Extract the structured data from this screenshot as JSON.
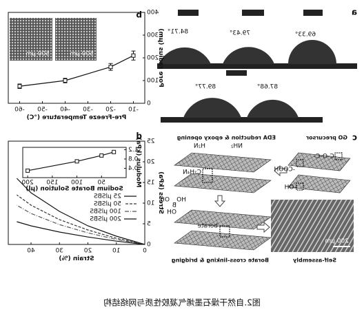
{
  "caption": "图2.自然干燥石墨烯气凝胶性质与网络结构",
  "panel_a": {
    "label": "a",
    "angles": [
      "69.33°",
      "79.43°",
      "84.71°",
      "87.68°",
      "89.77°"
    ]
  },
  "panel_c": {
    "label": "c",
    "steps": [
      "GO precursor",
      "EDA reduction & epoxy opening",
      "Borate cross-linking & bridging",
      "Self-assembly"
    ],
    "groups": [
      "-C-O-C-",
      "-COOH",
      "-OH",
      "H₂N",
      "NH₂",
      "C₂H₄N",
      "borate",
      "HO",
      "B",
      "OH",
      "OH"
    ],
    "scale_bar": "200 μm"
  },
  "chart_data": [
    {
      "type": "line",
      "label": "b",
      "xlabel": "Pre-Freeze Temperature (°C)",
      "ylabel": "Pore radius (μm)",
      "x": [
        -10,
        -20,
        -40,
        -60
      ],
      "series": [
        {
          "color": "#111111",
          "values": [
            210,
            160,
            100,
            75
          ],
          "errors": [
            20,
            15,
            10,
            10
          ]
        }
      ],
      "xlim": [
        -5,
        -65
      ],
      "xticks": [
        -10,
        -20,
        -30,
        -40,
        -50,
        -60
      ],
      "ylim": [
        0,
        400
      ],
      "yticks": [
        0,
        100,
        200,
        300,
        400
      ],
      "markers": true,
      "inset_labels": [
        "500 μm",
        "500 μm"
      ]
    },
    {
      "type": "line",
      "label": "d",
      "xlabel": "Strain (%)",
      "ylabel": "Stress (kPa)",
      "x": [
        0,
        10,
        20,
        30,
        40,
        45
      ],
      "series": [
        {
          "name": "25 μlSBS",
          "color": "#111111",
          "dash": "none",
          "values": [
            0,
            2,
            4.5,
            8,
            12.5,
            16
          ]
        },
        {
          "name": "50 μlSBS",
          "color": "#333333",
          "dash": "4 2",
          "values": [
            0,
            1.5,
            3.5,
            6,
            9.5,
            12
          ]
        },
        {
          "name": "100 μlSBS",
          "color": "#555555",
          "dash": "6 2 1 2",
          "values": [
            0,
            1.2,
            2.8,
            4.8,
            7.5,
            9.5
          ]
        },
        {
          "name": "200 μlSBS",
          "color": "#111111",
          "dash": "none",
          "values": [
            0,
            0.8,
            1.8,
            3,
            4.5,
            5.5
          ]
        }
      ],
      "xlim": [
        0,
        48
      ],
      "xticks": [
        0,
        10,
        20,
        30,
        40
      ],
      "ylim": [
        0,
        25
      ],
      "yticks": [
        0,
        5,
        10,
        15,
        20,
        25
      ],
      "markers": false
    },
    {
      "type": "line",
      "xlabel": "Sodium Borate Solution (μl)",
      "ylabel": "Modulus (kPa)",
      "x": [
        25,
        50,
        100,
        200
      ],
      "series": [
        {
          "color": "#111111",
          "values": [
            1.1,
            0.95,
            0.7,
            0.3
          ]
        }
      ],
      "xlim": [
        0,
        210
      ],
      "xticks": [
        50,
        100,
        150,
        200
      ],
      "ylim": [
        0,
        1.3
      ],
      "yticks": [
        0.4,
        0.8,
        1.2
      ],
      "markers": true
    }
  ]
}
